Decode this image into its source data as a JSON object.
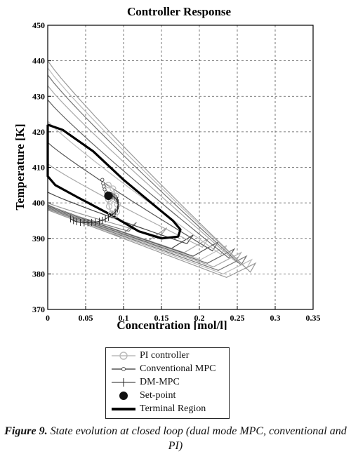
{
  "chart_data": {
    "type": "line",
    "title": "Controller Response",
    "xlabel": "Concentration [mol/l]",
    "ylabel": "Temperature [K]",
    "xlim": [
      0,
      0.35
    ],
    "ylim": [
      370,
      450
    ],
    "xticks": [
      "0",
      "0.05",
      "0.1",
      "0.15",
      "0.2",
      "0.25",
      "0.3",
      "0.35"
    ],
    "yticks": [
      "370",
      "380",
      "390",
      "400",
      "410",
      "420",
      "430",
      "440",
      "450"
    ],
    "grid": true,
    "legend_position": "bottom-center",
    "series": [
      {
        "name": "PI controller",
        "x": [
          0.08,
          0.086,
          0.09,
          0.092,
          0.091,
          0.088,
          0.084,
          0.081,
          0.08
        ],
        "y": [
          405.0,
          404.0,
          402.0,
          399.5,
          397.5,
          396.5,
          397.0,
          399.0,
          401.0
        ]
      },
      {
        "name": "Conventional MPC",
        "x": [
          0.072,
          0.073,
          0.074,
          0.075,
          0.077,
          0.079,
          0.08,
          0.08
        ],
        "y": [
          406.5,
          405.5,
          404.6,
          403.8,
          403.0,
          402.4,
          402.0,
          401.8
        ]
      },
      {
        "name": "DM-MPC",
        "x": [
          0.03,
          0.034,
          0.038,
          0.043,
          0.048,
          0.053,
          0.058,
          0.063,
          0.068,
          0.072,
          0.076,
          0.08,
          0.085,
          0.089,
          0.092,
          0.093,
          0.093,
          0.092,
          0.09,
          0.088,
          0.086,
          0.084,
          0.082,
          0.08
        ],
        "y": [
          395.5,
          395.0,
          394.7,
          394.5,
          394.4,
          394.4,
          394.5,
          394.6,
          394.8,
          395.1,
          395.5,
          395.9,
          396.6,
          397.4,
          398.3,
          399.2,
          400.0,
          400.7,
          401.2,
          401.6,
          401.9,
          402.0,
          402.1,
          402.0
        ]
      },
      {
        "name": "Set-point",
        "x": [
          0.08
        ],
        "y": [
          402.0
        ]
      },
      {
        "name": "Terminal Region",
        "x": [
          0.0,
          0.02,
          0.06,
          0.1,
          0.145,
          0.165,
          0.175,
          0.172,
          0.15,
          0.12,
          0.08,
          0.04,
          0.01,
          0.0,
          0.0
        ],
        "y": [
          422.0,
          420.5,
          414.5,
          406.5,
          398.5,
          395.0,
          392.5,
          390.5,
          390.0,
          392.0,
          397.0,
          401.5,
          405.0,
          407.5,
          422.0
        ]
      }
    ],
    "contour_levels": [
      {
        "x0": 0.0,
        "y0": 399.0,
        "c": 0.105,
        "t": 390.5
      },
      {
        "x0": 0.0,
        "y0": 400.0,
        "c": 0.145,
        "t": 389.0
      },
      {
        "x0": 0.0,
        "y0": 403.0,
        "c": 0.18,
        "t": 387.0
      },
      {
        "x0": 0.0,
        "y0": 411.0,
        "c": 0.2,
        "t": 386.0
      },
      {
        "x0": 0.0,
        "y0": 417.0,
        "c": 0.213,
        "t": 385.0
      },
      {
        "x0": 0.0,
        "y0": 423.0,
        "c": 0.224,
        "t": 384.0
      },
      {
        "x0": 0.0,
        "y0": 429.0,
        "c": 0.234,
        "t": 383.0
      },
      {
        "x0": 0.0,
        "y0": 433.0,
        "c": 0.243,
        "t": 382.0
      },
      {
        "x0": 0.0,
        "y0": 436.0,
        "c": 0.25,
        "t": 381.0
      },
      {
        "x0": 0.0,
        "y0": 438.0,
        "c": 0.257,
        "t": 380.0
      },
      {
        "x0": 0.0,
        "y0": 440.0,
        "c": 0.262,
        "t": 379.0
      }
    ]
  },
  "legend": {
    "items": [
      {
        "label": "PI controller"
      },
      {
        "label": "Conventional MPC"
      },
      {
        "label": "DM-MPC"
      },
      {
        "label": "Set-point"
      },
      {
        "label": "Terminal Region"
      }
    ]
  },
  "caption": {
    "label": "Figure 9.",
    "text": " State evolution at closed loop (dual mode MPC, conventional and PI)"
  },
  "colors": {
    "pi": "#bcbcbc",
    "mpc": "#555555",
    "dm": "#222222",
    "setpoint": "#111111",
    "terminal": "#000000",
    "grid": "#555555"
  }
}
